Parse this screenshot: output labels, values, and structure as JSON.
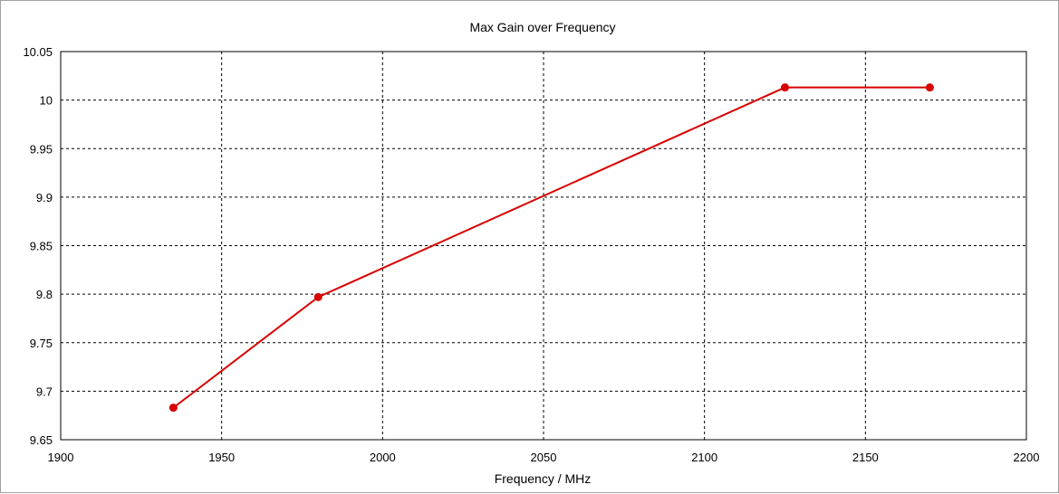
{
  "chart_data": {
    "type": "line",
    "title": "Max Gain over Frequency",
    "xlabel": "Frequency / MHz",
    "ylabel": "",
    "xlim": [
      1900,
      2200
    ],
    "ylim": [
      9.65,
      10.05
    ],
    "x_ticks": [
      1900,
      1950,
      2000,
      2050,
      2100,
      2150,
      2200
    ],
    "y_ticks": [
      9.65,
      9.7,
      9.75,
      9.8,
      9.85,
      9.9,
      9.95,
      10,
      10.05
    ],
    "x_tick_labels": [
      "1900",
      "1950",
      "2000",
      "2050",
      "2100",
      "2150",
      "2200"
    ],
    "y_tick_labels": [
      "9.65",
      "9.7",
      "9.75",
      "9.8",
      "9.85",
      "9.9",
      "9.95",
      "10",
      "10.05"
    ],
    "grid": true,
    "grid_style": "dashed",
    "legend": "none",
    "series": [
      {
        "color": "#d80000",
        "marker": "circle",
        "x": [
          1935,
          1980,
          2125,
          2170
        ],
        "y": [
          9.683,
          9.797,
          10.013,
          10.013
        ]
      }
    ]
  }
}
